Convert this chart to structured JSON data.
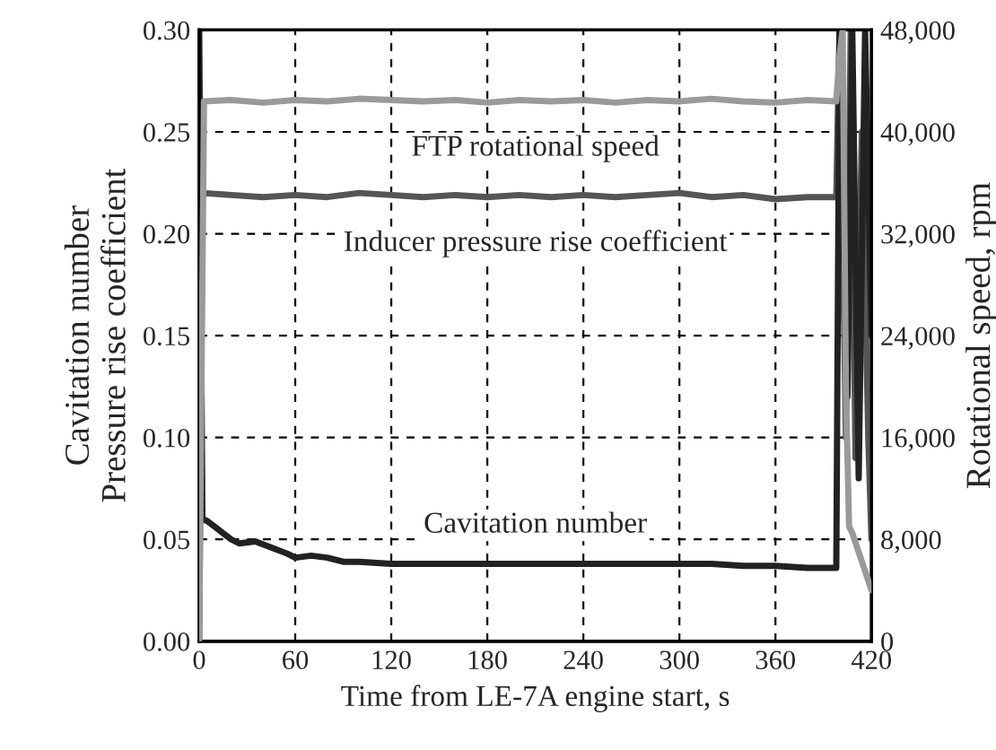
{
  "chart_data": {
    "type": "line",
    "xlabel": "Time from LE-7A engine start, s",
    "ylabel": "Cavitation number\nPressure rise coefficient",
    "y2label": "Rotational speed, rpm",
    "xlim": [
      0,
      420
    ],
    "xticks": [
      0,
      60,
      120,
      180,
      240,
      300,
      360,
      420
    ],
    "ylim": [
      0,
      0.3
    ],
    "yticks": [
      {
        "value": 0,
        "label": "0.00"
      },
      {
        "value": 0.05,
        "label": "0.05"
      },
      {
        "value": 0.1,
        "label": "0.10"
      },
      {
        "value": 0.15,
        "label": "0.15"
      },
      {
        "value": 0.2,
        "label": "0.20"
      },
      {
        "value": 0.25,
        "label": "0.25"
      },
      {
        "value": 0.3,
        "label": "0.30"
      }
    ],
    "y2lim": [
      0,
      48000
    ],
    "y2ticks": [
      0,
      {
        "value": 8000,
        "label": "8,000"
      },
      {
        "value": 16000,
        "label": "16,000"
      },
      {
        "value": 24000,
        "label": "24,000"
      },
      {
        "value": 32000,
        "label": "32,000"
      },
      {
        "value": 40000,
        "label": "40,000"
      },
      {
        "value": 48000,
        "label": "48,000"
      }
    ],
    "grid": true,
    "line_style": "solid",
    "marker": "none",
    "series": [
      {
        "name": "FTP rotational speed",
        "color": "#9a9a9a",
        "axis": "y2",
        "x": [
          0,
          3,
          20,
          40,
          60,
          80,
          100,
          120,
          140,
          160,
          180,
          200,
          220,
          240,
          260,
          280,
          300,
          320,
          340,
          360,
          380,
          398,
          400,
          402,
          404,
          406,
          408,
          412,
          416,
          420
        ],
        "values": [
          0,
          42400,
          42500,
          42300,
          42500,
          42400,
          42600,
          42500,
          42400,
          42500,
          42300,
          42500,
          42400,
          42500,
          42300,
          42500,
          42400,
          42600,
          42400,
          42300,
          42500,
          42400,
          46000,
          48000,
          20000,
          9000,
          8500,
          7000,
          5500,
          4000
        ]
      },
      {
        "name": "Inducer pressure rise coefficient",
        "color": "#555555",
        "x": [
          0,
          2,
          20,
          40,
          60,
          80,
          100,
          120,
          140,
          160,
          180,
          200,
          220,
          240,
          260,
          280,
          300,
          320,
          340,
          360,
          380,
          398,
          400,
          404,
          407,
          410,
          414,
          418,
          420
        ],
        "values": [
          0,
          0.22,
          0.219,
          0.218,
          0.219,
          0.218,
          0.22,
          0.219,
          0.218,
          0.219,
          0.218,
          0.219,
          0.218,
          0.219,
          0.218,
          0.219,
          0.22,
          0.218,
          0.219,
          0.217,
          0.218,
          0.218,
          0.3,
          0.1,
          0.3,
          0.09,
          0.25,
          0.1,
          0.05
        ]
      },
      {
        "name": "Cavitation number",
        "color": "#222222",
        "x": [
          0,
          2,
          5,
          10,
          15,
          20,
          25,
          35,
          45,
          55,
          60,
          70,
          80,
          90,
          100,
          120,
          140,
          160,
          180,
          200,
          220,
          240,
          260,
          280,
          300,
          320,
          340,
          360,
          380,
          398,
          400,
          405,
          408,
          412,
          416,
          420
        ],
        "values": [
          0.3,
          0.06,
          0.059,
          0.056,
          0.053,
          0.05,
          0.048,
          0.049,
          0.046,
          0.043,
          0.041,
          0.042,
          0.041,
          0.039,
          0.039,
          0.038,
          0.038,
          0.038,
          0.038,
          0.038,
          0.038,
          0.038,
          0.038,
          0.038,
          0.038,
          0.038,
          0.037,
          0.037,
          0.036,
          0.036,
          0.3,
          0.12,
          0.3,
          0.08,
          0.3,
          0.15
        ]
      }
    ]
  }
}
